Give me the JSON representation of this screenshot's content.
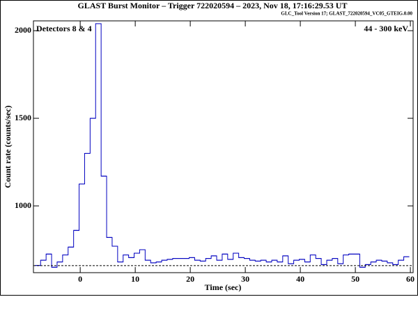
{
  "chart_data": {
    "type": "histogram",
    "title": "GLAST Burst Monitor  –  Trigger 722020594  –  2023, Nov 18, 17:16:29.53 UT",
    "subtitle": "GLC_Tool Version 17; GLAST_722020594_VC05_GTEIG.0.00",
    "annotations": [
      "Detectors 8 & 4",
      "44 - 300 keV"
    ],
    "xlabel": "Time (sec)",
    "ylabel": "Count rate (counts/sec)",
    "bins": [
      -8.2,
      -7.2,
      -6.2,
      -5.2,
      -4.2,
      -3.2,
      -2.2,
      -1.2,
      -0.2,
      0.8,
      1.8,
      2.8,
      3.8,
      4.8,
      5.8,
      6.8,
      7.8,
      8.8,
      9.8,
      10.8,
      11.8,
      12.8,
      13.8,
      14.8,
      15.8,
      16.8,
      17.8,
      18.8,
      19.8,
      20.8,
      21.8,
      22.8,
      23.8,
      24.8,
      25.8,
      26.8,
      27.8,
      28.8,
      29.8,
      30.8,
      31.8,
      32.8,
      33.8,
      34.8,
      35.8,
      36.8,
      37.8,
      38.8,
      39.8,
      40.8,
      41.8,
      42.8,
      43.8,
      44.8,
      45.8,
      46.8,
      47.8,
      48.8,
      49.8,
      50.8,
      51.8,
      52.8,
      53.8,
      54.8,
      55.8,
      56.8,
      57.8,
      58.8,
      59.8
    ],
    "counts": [
      660,
      690,
      725,
      650,
      680,
      720,
      765,
      860,
      1125,
      1300,
      1500,
      2040,
      1170,
      820,
      770,
      680,
      720,
      705,
      730,
      750,
      690,
      675,
      680,
      690,
      695,
      700,
      700,
      700,
      705,
      690,
      685,
      700,
      715,
      690,
      725,
      695,
      730,
      705,
      700,
      690,
      685,
      690,
      680,
      690,
      680,
      715,
      670,
      690,
      695,
      680,
      720,
      700,
      665,
      690,
      700,
      670,
      720,
      725,
      725,
      650,
      665,
      680,
      690,
      685,
      675,
      665,
      690,
      710
    ],
    "color": "#0000c0",
    "background_level": 659,
    "xlim": [
      -8.5,
      60.5
    ],
    "ylim": [
      619,
      2056
    ],
    "xticks": [
      0,
      10,
      20,
      30,
      40,
      50,
      60
    ],
    "yticks": [
      1000,
      1500,
      2000
    ]
  }
}
